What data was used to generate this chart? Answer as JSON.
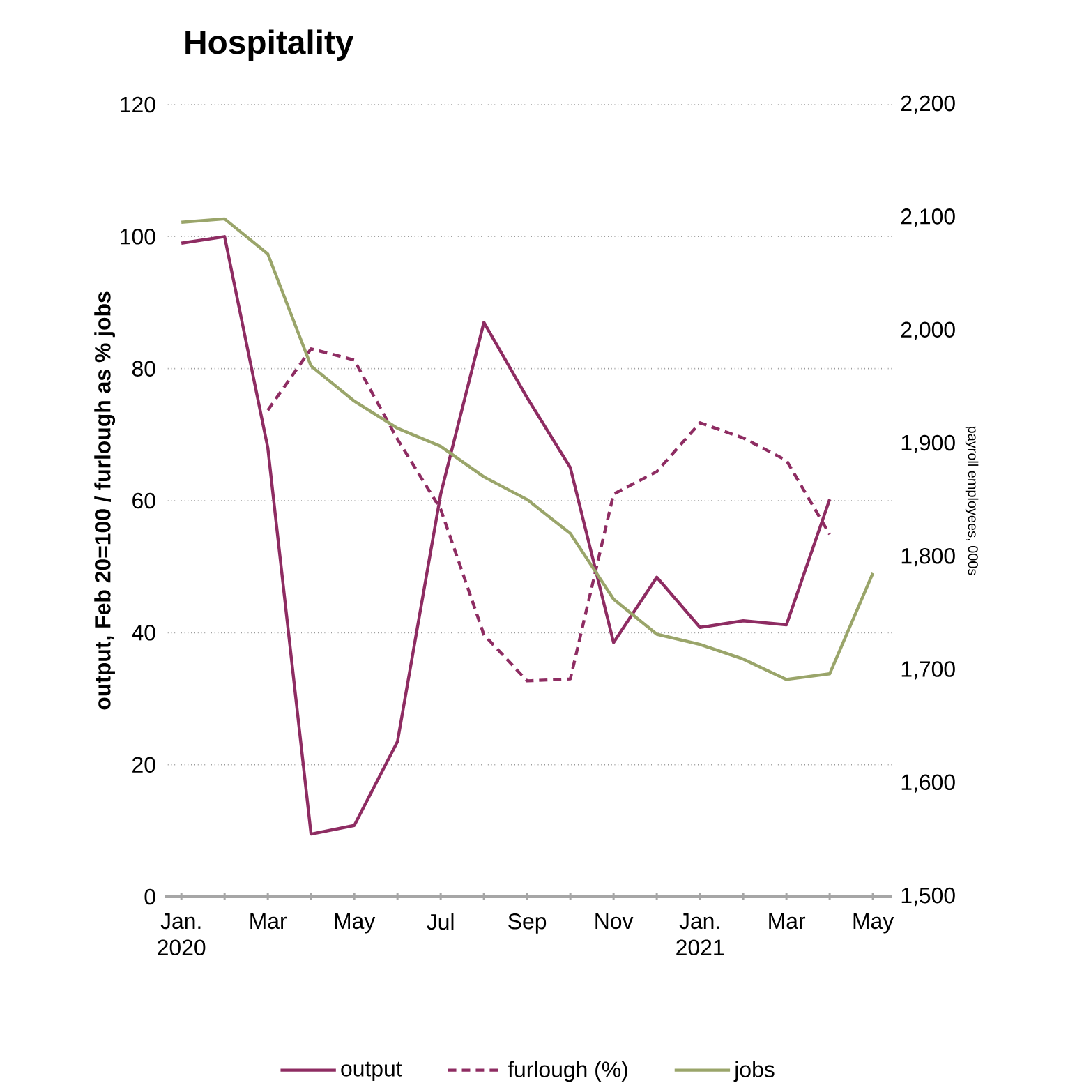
{
  "chart_data": {
    "type": "line",
    "title": "Hospitality",
    "ylabel": "output, Feb 20=100 / furlough as % jobs",
    "y2label": "payroll employees, 000s",
    "categories": [
      "Jan. 2020",
      null,
      "Mar",
      null,
      "May",
      null,
      "Jul",
      null,
      "Sep",
      null,
      "Nov",
      null,
      "Jan. 2021",
      null,
      "Mar",
      null,
      "May"
    ],
    "series": [
      {
        "name": "output",
        "color": "#8e2c62",
        "line_style": "solid",
        "values": [
          99,
          100,
          68,
          9.5,
          10.8,
          23.5,
          61,
          87,
          75.6,
          65,
          38.5,
          48.4,
          40.8,
          41.8,
          41.2,
          60.2,
          null
        ]
      },
      {
        "name": "furlough (%)",
        "color": "#8e2c62",
        "line_style": "dashed",
        "values": [
          null,
          null,
          73.7,
          83,
          81.3,
          69.3,
          58.7,
          39.7,
          32.7,
          33,
          61,
          64.4,
          71.8,
          69.5,
          66.1,
          54.9,
          null
        ]
      },
      {
        "name": "jobs",
        "color": "#9aa56a",
        "line_style": "solid",
        "axis": "y2",
        "values": [
          2096,
          2099,
          2068,
          1969,
          1938,
          1914,
          1898,
          1871,
          1851,
          1821,
          1763,
          1732,
          1723,
          1710,
          1692,
          1697,
          1786
        ]
      }
    ],
    "ylim": [
      0,
      120
    ],
    "yticks": [
      0,
      20,
      40,
      60,
      80,
      100,
      120
    ],
    "y2lim": [
      1500,
      2200
    ],
    "y2ticks": [
      {
        "value": 1500,
        "label": "1,500"
      },
      {
        "value": 1600,
        "label": "1,600"
      },
      {
        "value": 1700,
        "label": "1,700"
      },
      {
        "value": 1800,
        "label": "1,800"
      },
      {
        "value": 1900,
        "label": "1,900"
      },
      {
        "value": 2000,
        "label": "2,000"
      },
      {
        "value": 2100,
        "label": "2,100"
      },
      {
        "value": 2200,
        "label": "2,200"
      }
    ],
    "grid": "y",
    "legend": "bottom",
    "marker": "none"
  }
}
